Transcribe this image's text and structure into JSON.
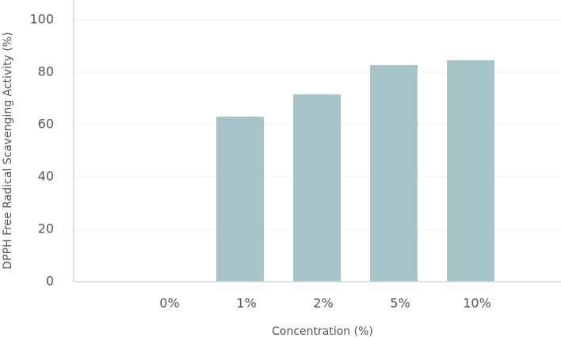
{
  "chart_data": {
    "type": "bar",
    "x_label": "Concentration (%)",
    "y_label": "DPPH Free Radical Scavenging Activity (%)",
    "categories": [
      "0%",
      "1%",
      "2%",
      "5%",
      "10%"
    ],
    "values": [
      0,
      63,
      71.5,
      82.7,
      84.5
    ],
    "color": "#a7c5c9",
    "ylim": [
      0,
      107.5
    ],
    "yticks": [
      0,
      20,
      40,
      60,
      80,
      100
    ],
    "grid": true
  }
}
